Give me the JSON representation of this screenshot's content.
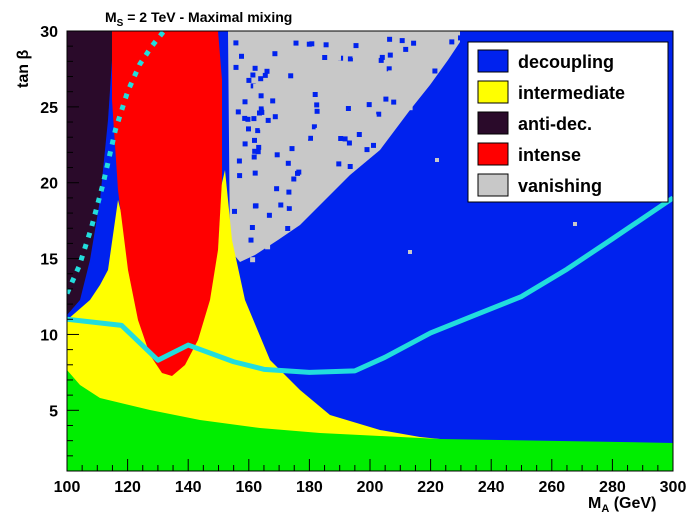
{
  "chart_data": {
    "type": "heatmap",
    "title_main": "M",
    "title_sub": "S",
    "title_rest": " = 2 TeV  -  Maximal mixing",
    "xlabel_main": "M",
    "xlabel_sub": "A",
    "xlabel_rest": " (GeV)",
    "ylabel": "tan β",
    "xlim": [
      100,
      300
    ],
    "ylim": [
      1,
      30
    ],
    "xticks": [
      "100",
      "120",
      "140",
      "160",
      "180",
      "200",
      "220",
      "240",
      "260",
      "280",
      "300"
    ],
    "yticks": [
      "5",
      "10",
      "15",
      "20",
      "25",
      "30"
    ],
    "legend_position": "top-right",
    "regions": [
      {
        "name": "decoupling",
        "color": "#0022ee"
      },
      {
        "name": "intermediate",
        "color": "#ffff00"
      },
      {
        "name": "anti-dec.",
        "color": "#2a0a2a"
      },
      {
        "name": "intense",
        "color": "#ff0000"
      },
      {
        "name": "vanishing",
        "color": "#c8c8c8"
      }
    ],
    "green_region_color": "#00ee00",
    "boundary_curves": {
      "color": "#22dddd",
      "solid": {
        "x": [
          100,
          118,
          130,
          140,
          155,
          165,
          180,
          195,
          205,
          220,
          235,
          250,
          265,
          280,
          300
        ],
        "y": [
          11,
          10.6,
          8.3,
          9.3,
          8.2,
          7.7,
          7.5,
          7.6,
          8.5,
          10.1,
          11.3,
          12.5,
          14.3,
          16.3,
          19
        ]
      },
      "dotted": {
        "x": [
          100,
          104,
          108,
          112,
          116,
          120,
          124,
          128,
          132
        ],
        "y": [
          12.7,
          14.5,
          17,
          20,
          23.5,
          26,
          27.8,
          29,
          30
        ]
      }
    }
  }
}
